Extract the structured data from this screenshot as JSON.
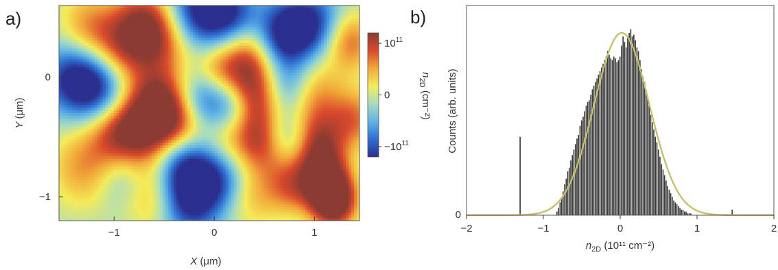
{
  "panels": {
    "a_label": "a)",
    "b_label": "b)"
  },
  "chart_data": [
    {
      "type": "heatmap",
      "xlabel_sym": "X",
      "xlabel_unit": " (μm)",
      "ylabel_sym": "Y",
      "ylabel_unit": " (μm)",
      "xlim": [
        -1.55,
        1.45
      ],
      "ylim": [
        -1.2,
        0.6
      ],
      "x_ticks": [
        {
          "v": -1,
          "t": "−1"
        },
        {
          "v": 0,
          "t": "0"
        },
        {
          "v": 1,
          "t": "1"
        }
      ],
      "y_ticks": [
        {
          "v": 0,
          "t": "0"
        },
        {
          "v": -1,
          "t": "−1"
        }
      ],
      "colorbar": {
        "label": "n2D (cm−2)",
        "label_sym": "n",
        "label_sub": "2D",
        "label_unit": " (cm⁻²)",
        "range": [
          -1.2,
          1.2
        ],
        "ticks": [
          {
            "v": 1,
            "base": "10",
            "exp": "11"
          },
          {
            "v": 0,
            "base": "0",
            "exp": ""
          },
          {
            "v": -1,
            "base": "−10",
            "exp": "11"
          }
        ],
        "colors": [
          "#2b2f8f",
          "#2f6fd1",
          "#5fb3e6",
          "#a8dcc0",
          "#f4ec5a",
          "#f2a93a",
          "#d9492c",
          "#8c3b33"
        ]
      },
      "blobs": [
        {
          "x": -1.25,
          "y": 0.4,
          "s": 0.22,
          "a": 0.8
        },
        {
          "x": -0.75,
          "y": 0.45,
          "s": 0.2,
          "a": 0.7
        },
        {
          "x": -0.55,
          "y": 0.35,
          "s": 0.25,
          "a": 1.1
        },
        {
          "x": -0.95,
          "y": 0.2,
          "s": 0.2,
          "a": 0.6
        },
        {
          "x": -0.55,
          "y": -0.25,
          "s": 0.22,
          "a": 1.4
        },
        {
          "x": -0.3,
          "y": -0.45,
          "s": 0.2,
          "a": 0.9
        },
        {
          "x": -0.75,
          "y": -0.5,
          "s": 0.22,
          "a": 0.9
        },
        {
          "x": -1.0,
          "y": -0.45,
          "s": 0.2,
          "a": 0.7
        },
        {
          "x": -1.3,
          "y": -0.75,
          "s": 0.25,
          "a": 0.7
        },
        {
          "x": -0.65,
          "y": -1.0,
          "s": 0.2,
          "a": 0.6
        },
        {
          "x": 0.0,
          "y": 0.05,
          "s": 0.15,
          "a": 0.5
        },
        {
          "x": 0.3,
          "y": 0.15,
          "s": 0.22,
          "a": 1.2
        },
        {
          "x": 0.4,
          "y": -0.2,
          "s": 0.2,
          "a": 1.0
        },
        {
          "x": 0.5,
          "y": -0.55,
          "s": 0.18,
          "a": 0.9
        },
        {
          "x": 0.15,
          "y": -0.55,
          "s": 0.2,
          "a": 0.6
        },
        {
          "x": 0.35,
          "y": -1.0,
          "s": 0.2,
          "a": 0.55
        },
        {
          "x": 0.95,
          "y": -0.15,
          "s": 0.22,
          "a": 0.9
        },
        {
          "x": 1.05,
          "y": -0.55,
          "s": 0.18,
          "a": 0.9
        },
        {
          "x": 1.1,
          "y": -0.85,
          "s": 0.18,
          "a": 1.3
        },
        {
          "x": 1.2,
          "y": -1.05,
          "s": 0.16,
          "a": 1.5
        },
        {
          "x": 0.75,
          "y": -0.9,
          "s": 0.18,
          "a": 0.8
        },
        {
          "x": 1.35,
          "y": 0.3,
          "s": 0.18,
          "a": 0.9
        },
        {
          "x": 1.4,
          "y": -0.35,
          "s": 0.18,
          "a": 0.8
        },
        {
          "x": -0.2,
          "y": 0.55,
          "s": 0.22,
          "a": -1.2
        },
        {
          "x": 0.15,
          "y": 0.5,
          "s": 0.2,
          "a": -1.1
        },
        {
          "x": 0.7,
          "y": 0.35,
          "s": 0.2,
          "a": -1.3
        },
        {
          "x": 1.0,
          "y": 0.45,
          "s": 0.2,
          "a": -0.9
        },
        {
          "x": -1.4,
          "y": 0.0,
          "s": 0.22,
          "a": -1.1
        },
        {
          "x": -1.15,
          "y": -0.1,
          "s": 0.2,
          "a": -0.9
        },
        {
          "x": -0.1,
          "y": -0.2,
          "s": 0.2,
          "a": -1.0
        },
        {
          "x": -0.3,
          "y": -0.7,
          "s": 0.2,
          "a": -1.2
        },
        {
          "x": 0.05,
          "y": -0.85,
          "s": 0.2,
          "a": -1.0
        },
        {
          "x": -0.25,
          "y": -1.05,
          "s": 0.2,
          "a": -1.0
        },
        {
          "x": 0.75,
          "y": -0.1,
          "s": 0.18,
          "a": -0.9
        },
        {
          "x": 0.7,
          "y": -0.5,
          "s": 0.16,
          "a": -0.6
        },
        {
          "x": -0.9,
          "y": -0.85,
          "s": 0.18,
          "a": -0.5
        },
        {
          "x": 0.2,
          "y": -0.25,
          "s": 0.15,
          "a": -0.6
        }
      ]
    },
    {
      "type": "bar",
      "xlabel": "n2D (10¹¹ cm⁻²)",
      "xlabel_sym": "n",
      "xlabel_sub": "2D",
      "xlabel_unit": " (10¹¹ cm⁻²)",
      "ylabel": "Counts (arb. units)",
      "xlim": [
        -2,
        2
      ],
      "ylim": [
        0,
        1.15
      ],
      "x_ticks": [
        {
          "v": -2,
          "t": "−2"
        },
        {
          "v": -1,
          "t": "−1"
        },
        {
          "v": 0,
          "t": "0"
        },
        {
          "v": 1,
          "t": "1"
        },
        {
          "v": 2,
          "t": "2"
        }
      ],
      "y_ticks": [
        {
          "v": 0,
          "t": "0"
        }
      ],
      "bin_width": 0.02,
      "bins": [
        {
          "x": -0.82,
          "y": 0.02
        },
        {
          "x": -0.8,
          "y": 0.04
        },
        {
          "x": -0.78,
          "y": 0.07
        },
        {
          "x": -0.76,
          "y": 0.1
        },
        {
          "x": -0.74,
          "y": 0.13
        },
        {
          "x": -0.72,
          "y": 0.17
        },
        {
          "x": -0.7,
          "y": 0.2
        },
        {
          "x": -0.68,
          "y": 0.24
        },
        {
          "x": -0.66,
          "y": 0.26
        },
        {
          "x": -0.64,
          "y": 0.3
        },
        {
          "x": -0.62,
          "y": 0.33
        },
        {
          "x": -0.6,
          "y": 0.36
        },
        {
          "x": -0.58,
          "y": 0.39
        },
        {
          "x": -0.56,
          "y": 0.42
        },
        {
          "x": -0.54,
          "y": 0.44
        },
        {
          "x": -0.52,
          "y": 0.49
        },
        {
          "x": -0.5,
          "y": 0.52
        },
        {
          "x": -0.48,
          "y": 0.54
        },
        {
          "x": -0.46,
          "y": 0.57
        },
        {
          "x": -0.44,
          "y": 0.6
        },
        {
          "x": -0.42,
          "y": 0.62
        },
        {
          "x": -0.4,
          "y": 0.63
        },
        {
          "x": -0.38,
          "y": 0.66
        },
        {
          "x": -0.36,
          "y": 0.69
        },
        {
          "x": -0.34,
          "y": 0.71
        },
        {
          "x": -0.32,
          "y": 0.73
        },
        {
          "x": -0.3,
          "y": 0.75
        },
        {
          "x": -0.28,
          "y": 0.77
        },
        {
          "x": -0.26,
          "y": 0.79
        },
        {
          "x": -0.24,
          "y": 0.81
        },
        {
          "x": -0.22,
          "y": 0.83
        },
        {
          "x": -0.2,
          "y": 0.85
        },
        {
          "x": -0.18,
          "y": 0.87
        },
        {
          "x": -0.16,
          "y": 0.9
        },
        {
          "x": -0.14,
          "y": 0.88
        },
        {
          "x": -0.12,
          "y": 0.86
        },
        {
          "x": -0.1,
          "y": 0.85
        },
        {
          "x": -0.08,
          "y": 0.87
        },
        {
          "x": -0.06,
          "y": 0.86
        },
        {
          "x": -0.04,
          "y": 0.84
        },
        {
          "x": -0.02,
          "y": 0.85
        },
        {
          "x": 0.0,
          "y": 0.87
        },
        {
          "x": 0.02,
          "y": 0.93
        },
        {
          "x": 0.04,
          "y": 0.98
        },
        {
          "x": 0.06,
          "y": 0.95
        },
        {
          "x": 0.08,
          "y": 0.92
        },
        {
          "x": 0.1,
          "y": 0.97
        },
        {
          "x": 0.12,
          "y": 1.0
        },
        {
          "x": 0.14,
          "y": 1.02
        },
        {
          "x": 0.16,
          "y": 0.98
        },
        {
          "x": 0.18,
          "y": 0.99
        },
        {
          "x": 0.2,
          "y": 0.96
        },
        {
          "x": 0.22,
          "y": 0.92
        },
        {
          "x": 0.24,
          "y": 0.9
        },
        {
          "x": 0.26,
          "y": 0.85
        },
        {
          "x": 0.28,
          "y": 0.8
        },
        {
          "x": 0.3,
          "y": 0.76
        },
        {
          "x": 0.32,
          "y": 0.73
        },
        {
          "x": 0.34,
          "y": 0.69
        },
        {
          "x": 0.36,
          "y": 0.64
        },
        {
          "x": 0.38,
          "y": 0.6
        },
        {
          "x": 0.4,
          "y": 0.55
        },
        {
          "x": 0.42,
          "y": 0.51
        },
        {
          "x": 0.44,
          "y": 0.47
        },
        {
          "x": 0.46,
          "y": 0.43
        },
        {
          "x": 0.48,
          "y": 0.4
        },
        {
          "x": 0.5,
          "y": 0.36
        },
        {
          "x": 0.52,
          "y": 0.32
        },
        {
          "x": 0.54,
          "y": 0.28
        },
        {
          "x": 0.56,
          "y": 0.25
        },
        {
          "x": 0.58,
          "y": 0.22
        },
        {
          "x": 0.6,
          "y": 0.19
        },
        {
          "x": 0.62,
          "y": 0.16
        },
        {
          "x": 0.64,
          "y": 0.14
        },
        {
          "x": 0.66,
          "y": 0.12
        },
        {
          "x": 0.68,
          "y": 0.1
        },
        {
          "x": 0.7,
          "y": 0.08
        },
        {
          "x": 0.72,
          "y": 0.07
        },
        {
          "x": 0.74,
          "y": 0.06
        },
        {
          "x": 0.76,
          "y": 0.05
        },
        {
          "x": 0.78,
          "y": 0.04
        },
        {
          "x": 0.8,
          "y": 0.03
        },
        {
          "x": 0.82,
          "y": 0.03
        },
        {
          "x": 0.84,
          "y": 0.02
        },
        {
          "x": 0.86,
          "y": 0.02
        },
        {
          "x": 0.88,
          "y": 0.01
        },
        {
          "x": 0.9,
          "y": 0.01
        },
        {
          "x": 0.92,
          "y": 0.01
        },
        {
          "x": -1.3,
          "y": 0.43
        },
        {
          "x": 1.46,
          "y": 0.03
        }
      ],
      "fit": {
        "type": "gaussian",
        "mu": 0.02,
        "sigma": 0.36,
        "amplitude": 1.0
      },
      "bar_color": "#3a3a3a",
      "fit_color": "#c8c064"
    }
  ]
}
